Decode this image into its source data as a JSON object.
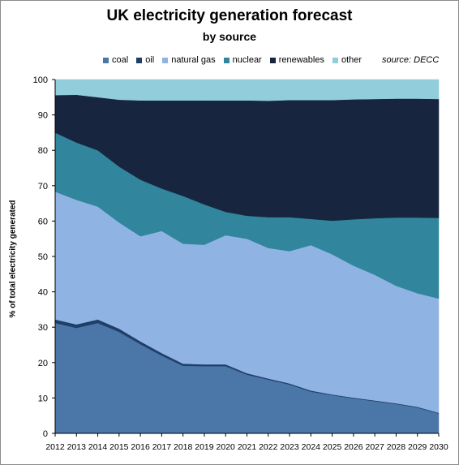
{
  "chart_data": {
    "type": "area",
    "stacked": true,
    "title": "UK electricity generation forecast",
    "subtitle": "by source",
    "source": "source: DECC",
    "xlabel": "",
    "ylabel": "% of total electricity generated",
    "ylim": [
      0,
      100
    ],
    "yticks": [
      0,
      10,
      20,
      30,
      40,
      50,
      60,
      70,
      80,
      90,
      100
    ],
    "grid": false,
    "legend_position": "top",
    "x": [
      "2012",
      "2013",
      "2014",
      "2015",
      "2016",
      "2017",
      "2018",
      "2019",
      "2020",
      "2021",
      "2022",
      "2023",
      "2024",
      "2025",
      "2026",
      "2027",
      "2028",
      "2029",
      "2030"
    ],
    "series": [
      {
        "name": "coal",
        "color": "#4a76a8",
        "values": [
          31.2,
          29.8,
          31.2,
          28.7,
          25.2,
          22.0,
          19.1,
          19.0,
          19.0,
          16.6,
          15.2,
          13.8,
          11.8,
          10.8,
          9.9,
          9.1,
          8.3,
          7.3,
          5.6
        ]
      },
      {
        "name": "oil",
        "color": "#1f3f68",
        "values": [
          1.0,
          1.0,
          1.0,
          0.9,
          0.8,
          0.7,
          0.6,
          0.5,
          0.5,
          0.4,
          0.3,
          0.3,
          0.3,
          0.2,
          0.2,
          0.2,
          0.2,
          0.2,
          0.2
        ]
      },
      {
        "name": "natural gas",
        "color": "#8fb4e3",
        "values": [
          36.1,
          35.2,
          31.9,
          30.0,
          29.7,
          34.5,
          33.9,
          33.8,
          36.5,
          38.0,
          36.9,
          37.4,
          41.1,
          39.6,
          37.3,
          35.5,
          33.2,
          32.1,
          32.3
        ]
      },
      {
        "name": "nuclear",
        "color": "#31859c",
        "values": [
          16.7,
          16.2,
          15.9,
          15.8,
          16.0,
          12.0,
          13.5,
          11.4,
          6.6,
          6.5,
          8.7,
          9.6,
          7.4,
          9.5,
          13.1,
          16.0,
          19.3,
          21.4,
          22.8
        ]
      },
      {
        "name": "renewables",
        "color": "#17253f",
        "values": [
          10.6,
          13.5,
          15.0,
          18.9,
          22.4,
          24.9,
          27.0,
          29.4,
          31.5,
          32.6,
          32.9,
          33.1,
          33.6,
          34.1,
          33.9,
          33.7,
          33.6,
          33.6,
          33.6
        ]
      },
      {
        "name": "other",
        "color": "#92cddc",
        "values": [
          4.4,
          4.3,
          5.0,
          5.7,
          5.9,
          5.9,
          5.9,
          5.9,
          5.9,
          5.9,
          6.0,
          5.8,
          5.8,
          5.8,
          5.6,
          5.5,
          5.4,
          5.4,
          5.5
        ]
      }
    ]
  }
}
